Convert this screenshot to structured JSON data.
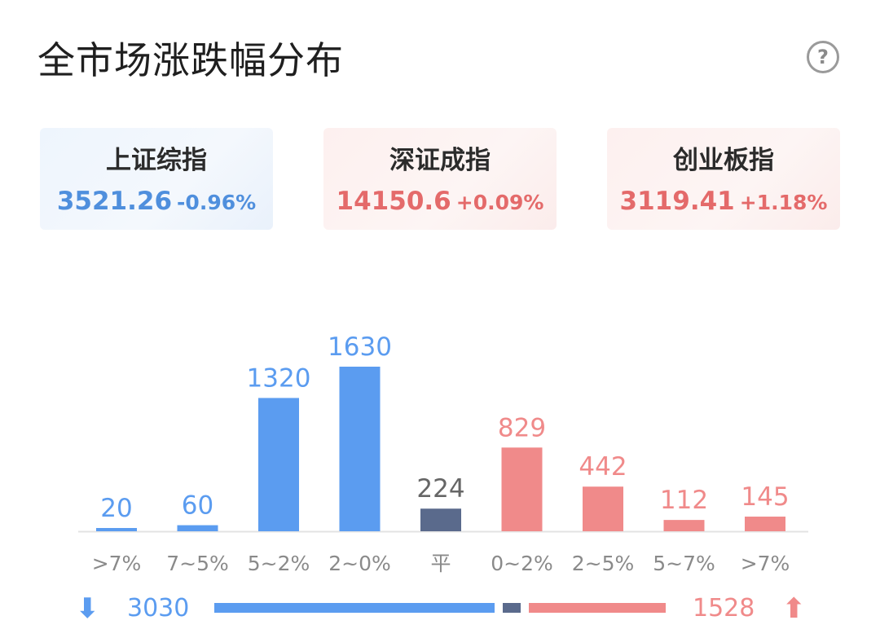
{
  "header": {
    "title": "全市场涨跌幅分布",
    "help_icon": "question-circle-icon",
    "help_glyph": "?"
  },
  "indices": [
    {
      "name": "上证综指",
      "value": "3521.26",
      "change": "-0.96%",
      "color": "#4f8fdd"
    },
    {
      "name": "深证成指",
      "value": "14150.6",
      "change": "+0.09%",
      "color": "#e46a6a"
    },
    {
      "name": "创业板指",
      "value": "3119.41",
      "change": "+1.18%",
      "color": "#e46a6a"
    }
  ],
  "chart_data": {
    "type": "bar",
    "title": "",
    "xlabel": "",
    "ylabel": "",
    "categories": [
      ">7%",
      "7~5%",
      "5~2%",
      "2~0%",
      "平",
      "0~2%",
      "2~5%",
      "5~7%",
      ">7%"
    ],
    "values": [
      20,
      60,
      1320,
      1630,
      224,
      829,
      442,
      112,
      145
    ],
    "bar_colors": [
      "#5b9cf0",
      "#5b9cf0",
      "#5b9cf0",
      "#5b9cf0",
      "#5a6a8c",
      "#f08a8a",
      "#f08a8a",
      "#f08a8a",
      "#f08a8a"
    ],
    "label_colors": [
      "#5b9cf0",
      "#5b9cf0",
      "#5b9cf0",
      "#5b9cf0",
      "#666666",
      "#f08a8a",
      "#f08a8a",
      "#f08a8a",
      "#f08a8a"
    ],
    "ylim": [
      0,
      1630
    ],
    "grid": false,
    "legend": "none"
  },
  "summary": {
    "down_total": "3030",
    "up_total": "1528",
    "flat_total": 224,
    "down_icon": "arrow-down-icon",
    "up_icon": "arrow-up-icon",
    "down_glyph": "⬇",
    "up_glyph": "⬆",
    "down_color": "#5b9cf0",
    "up_color": "#f08a8a",
    "flat_color": "#5a6a8c"
  }
}
